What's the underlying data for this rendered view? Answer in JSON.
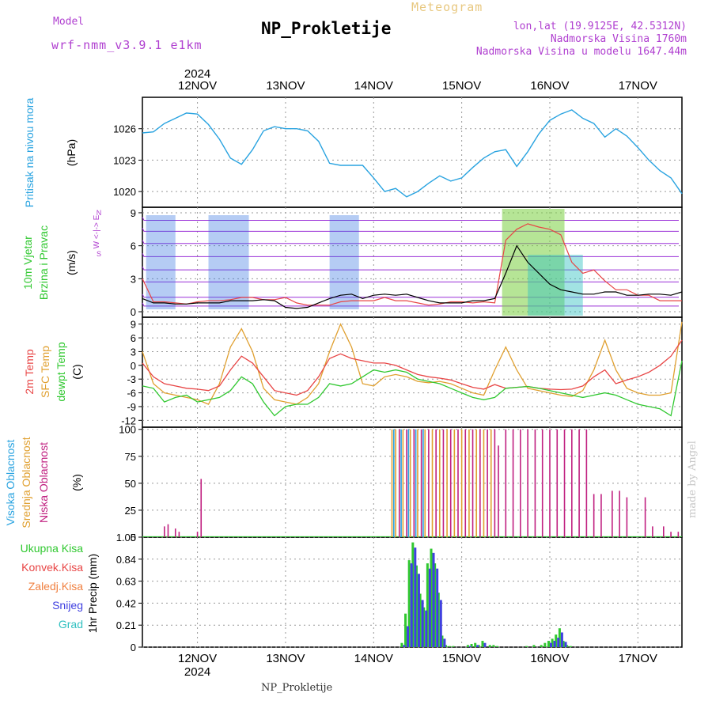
{
  "header": {
    "model_label": "Model",
    "model_name": "wrf-nmm_v3.9.1 e1km",
    "station": "NP_Prokletije",
    "meteogram": "Meteogram",
    "lonlat": "lon,lat (19.9125E, 42.5312N)",
    "elevation": "Nadmorska Visina 1760m",
    "model_elevation": "Nadmorska Visina u modelu 1647.44m",
    "footer_station": "NP_Prokletije",
    "watermark": "made by Angel"
  },
  "colors": {
    "pressure": "#29a3e0",
    "wind_bar_purple": "#9b30d8",
    "wind_bar_blue": "#2a6de0",
    "wind_speed": "#000000",
    "gust": "#e84545",
    "temp2m": "#e84545",
    "sfc_temp": "#e0a030",
    "dewpt": "#30c830",
    "cloud_high": "#29a3e0",
    "cloud_mid": "#e0a030",
    "cloud_low": "#c02080",
    "rain_total": "#30c830",
    "rain_conv": "#e84545",
    "rain_frozen": "#f08040",
    "snow": "#4040e0",
    "hail": "#30c0c0",
    "grid": "#999999",
    "label_purple": "#b040d0"
  },
  "time_axis": {
    "ticks": [
      "12NOV",
      "13NOV",
      "14NOV",
      "15NOV",
      "16NOV",
      "17NOV"
    ],
    "year": "2024",
    "start_hour": -15,
    "end_hour": 132,
    "tick_hours": [
      0,
      24,
      48,
      72,
      96,
      120
    ]
  },
  "chart_data": [
    {
      "id": "pressure",
      "type": "line",
      "ylabel": [
        "Pritisak na nivou mora",
        "(hPa)"
      ],
      "ylim": [
        1018.5,
        1029
      ],
      "yticks": [
        1020,
        1023,
        1026
      ],
      "series": [
        {
          "x": [
            -15,
            -12,
            -9,
            -6,
            -3,
            0,
            3,
            6,
            9,
            12,
            15,
            18,
            21,
            24,
            27,
            30,
            33,
            36,
            39,
            42,
            45,
            48,
            51,
            54,
            57,
            60,
            63,
            66,
            69,
            72,
            75,
            78,
            81,
            84,
            87,
            90,
            93,
            96,
            99,
            102,
            105,
            108,
            111,
            114,
            117,
            120,
            123,
            126,
            129,
            132
          ],
          "y": [
            1025.6,
            1025.7,
            1026.5,
            1027,
            1027.5,
            1027.4,
            1026.4,
            1025,
            1023.2,
            1022.6,
            1024,
            1025.8,
            1026.2,
            1026.0,
            1026.0,
            1025.8,
            1024.8,
            1022.7,
            1022.5,
            1022.5,
            1022.5,
            1021.3,
            1020.0,
            1020.3,
            1019.5,
            1020.0,
            1020.8,
            1021.5,
            1021.0,
            1021.3,
            1022.3,
            1023.2,
            1023.8,
            1024.0,
            1022.4,
            1023.8,
            1025.5,
            1026.8,
            1027.4,
            1027.8,
            1027.0,
            1026.5,
            1025.2,
            1026,
            1025.3,
            1024.2,
            1023.0,
            1022.0,
            1021.3,
            1019.8
          ]
        }
      ]
    },
    {
      "id": "wind",
      "type": "line",
      "ylabel": [
        "10m Vjetar",
        "Brzina i Pravac",
        "(m/s)"
      ],
      "compass": "W <-|-> E",
      "compass_v": [
        "N",
        "S"
      ],
      "ylim": [
        -0.5,
        9.5
      ],
      "yticks": [
        0,
        3,
        6,
        9
      ],
      "series": [
        {
          "name": "speed",
          "x": [
            -15,
            -12,
            -9,
            -6,
            -3,
            0,
            3,
            6,
            9,
            12,
            15,
            18,
            21,
            24,
            27,
            30,
            33,
            36,
            39,
            42,
            45,
            48,
            51,
            54,
            57,
            60,
            63,
            66,
            69,
            72,
            75,
            78,
            81,
            84,
            87,
            90,
            93,
            96,
            99,
            102,
            105,
            108,
            111,
            114,
            117,
            120,
            123,
            126,
            129,
            132
          ],
          "y": [
            1.2,
            0.8,
            0.8,
            0.7,
            0.7,
            0.8,
            0.8,
            0.8,
            1.0,
            1.0,
            1.0,
            1.1,
            1.0,
            0.4,
            0.3,
            0.4,
            0.8,
            1.2,
            1.5,
            1.6,
            1.2,
            1.5,
            1.6,
            1.5,
            1.6,
            1.3,
            1.0,
            0.8,
            0.8,
            0.8,
            1.0,
            1.0,
            1.2,
            3.5,
            6.0,
            4.5,
            3.5,
            2.5,
            2.0,
            1.8,
            1.6,
            1.6,
            1.8,
            1.8,
            1.5,
            1.5,
            1.6,
            1.6,
            1.5,
            1.8
          ]
        },
        {
          "name": "gust",
          "x": [
            -15,
            -12,
            -9,
            -6,
            -3,
            0,
            3,
            6,
            9,
            12,
            15,
            18,
            21,
            24,
            27,
            30,
            33,
            36,
            39,
            42,
            45,
            48,
            51,
            54,
            57,
            60,
            63,
            66,
            69,
            72,
            75,
            78,
            81,
            84,
            87,
            90,
            93,
            96,
            99,
            102,
            105,
            108,
            111,
            114,
            117,
            120,
            123,
            126,
            129,
            132
          ],
          "y": [
            3.0,
            0.9,
            0.9,
            0.8,
            0.7,
            0.9,
            1.0,
            1.0,
            1.1,
            1.3,
            1.3,
            1.1,
            1.1,
            1.3,
            0.8,
            0.6,
            0.6,
            0.6,
            0.9,
            1.0,
            1.0,
            1.0,
            1.3,
            1.0,
            1.0,
            0.8,
            0.6,
            0.7,
            0.9,
            0.9,
            0.8,
            0.9,
            0.8,
            6.5,
            7.5,
            8.0,
            7.7,
            7.5,
            7.0,
            4.5,
            3.5,
            3.8,
            2.8,
            2.0,
            2.0,
            1.5,
            1.5,
            1.0,
            1.0,
            1.0
          ]
        }
      ]
    },
    {
      "id": "temperature",
      "type": "line",
      "ylabel": [
        "2m Temp",
        "SFC Temp",
        "dewpt Temp",
        "(C)"
      ],
      "ylim": [
        -13.5,
        10.5
      ],
      "yticks": [
        -12,
        -9,
        -6,
        -3,
        0,
        3,
        6,
        9
      ],
      "series": [
        {
          "name": "2m Temp",
          "x": [
            -15,
            -12,
            -9,
            -6,
            -3,
            0,
            3,
            6,
            9,
            12,
            15,
            18,
            21,
            24,
            27,
            30,
            33,
            36,
            39,
            42,
            45,
            48,
            51,
            54,
            57,
            60,
            63,
            66,
            69,
            72,
            75,
            78,
            81,
            84,
            87,
            90,
            93,
            96,
            99,
            102,
            105,
            108,
            111,
            114,
            117,
            120,
            123,
            126,
            129,
            132
          ],
          "y": [
            0.5,
            -2.5,
            -4.0,
            -4.5,
            -5.0,
            -5.2,
            -5.5,
            -4.5,
            -1.0,
            2.0,
            0.5,
            -2.5,
            -5.5,
            -6.0,
            -6.5,
            -5.5,
            -2.5,
            1.5,
            2.5,
            1.5,
            1.0,
            0.5,
            0.5,
            0.0,
            -1.0,
            -2.0,
            -2.5,
            -2.8,
            -3.2,
            -4.0,
            -4.8,
            -5.2,
            -4.2,
            -5.0,
            -4.8,
            -4.6,
            -5.0,
            -5.2,
            -5.3,
            -5.2,
            -4.5,
            -2.5,
            -1.0,
            -4.0,
            -3.2,
            -2.5,
            -1.5,
            0.0,
            2.0,
            5.5
          ]
        },
        {
          "name": "SFC Temp",
          "x": [
            -15,
            -12,
            -9,
            -6,
            -3,
            0,
            3,
            6,
            9,
            12,
            15,
            18,
            21,
            24,
            27,
            30,
            33,
            36,
            39,
            42,
            45,
            48,
            51,
            54,
            57,
            60,
            63,
            66,
            69,
            72,
            75,
            78,
            81,
            84,
            87,
            90,
            93,
            96,
            99,
            102,
            105,
            108,
            111,
            114,
            117,
            120,
            123,
            126,
            129,
            132
          ],
          "y": [
            3.0,
            -4.0,
            -6.0,
            -6.5,
            -7.0,
            -7.5,
            -8.5,
            -4.0,
            4.0,
            8.0,
            3.0,
            -5.0,
            -7.5,
            -8.0,
            -8.5,
            -7.0,
            -4.0,
            3.0,
            9.0,
            4.0,
            -4.0,
            -4.5,
            -2.5,
            -2.0,
            -2.5,
            -3.5,
            -3.8,
            -3.5,
            -4.0,
            -5.0,
            -6.0,
            -6.5,
            -1.0,
            4.0,
            -1.0,
            -5.0,
            -5.5,
            -6.0,
            -6.5,
            -6.8,
            -5.5,
            -1.0,
            5.5,
            -1.0,
            -5.0,
            -6.0,
            -6.5,
            -6.5,
            -6.0,
            9.5
          ]
        },
        {
          "name": "dewpt Temp",
          "x": [
            -15,
            -12,
            -9,
            -6,
            -3,
            0,
            3,
            6,
            9,
            12,
            15,
            18,
            21,
            24,
            27,
            30,
            33,
            36,
            39,
            42,
            45,
            48,
            51,
            54,
            57,
            60,
            63,
            66,
            69,
            72,
            75,
            78,
            81,
            84,
            87,
            90,
            93,
            96,
            99,
            102,
            105,
            108,
            111,
            114,
            117,
            120,
            123,
            126,
            129,
            132
          ],
          "y": [
            -4.5,
            -5.0,
            -8.0,
            -7.0,
            -6.5,
            -8.0,
            -7.5,
            -7.0,
            -5.5,
            -2.5,
            -4.0,
            -8.0,
            -11.0,
            -9.0,
            -8.5,
            -8.5,
            -7.0,
            -4.0,
            -4.5,
            -4.0,
            -2.5,
            -1.0,
            -1.5,
            -1.0,
            -1.5,
            -3.0,
            -3.5,
            -4.0,
            -5.0,
            -6.0,
            -7.0,
            -7.5,
            -7.0,
            -5.0,
            -4.8,
            -4.6,
            -5.0,
            -5.5,
            -6.0,
            -6.5,
            -7.0,
            -6.5,
            -6.0,
            -6.5,
            -7.5,
            -8.5,
            -9.0,
            -9.5,
            -11.0,
            1.0
          ]
        }
      ]
    },
    {
      "id": "cloud",
      "type": "bar",
      "ylabel": [
        "Visoka Oblacnost",
        "Srednja Oblacnost",
        "Niska Oblacnost",
        "(%)"
      ],
      "ylim": [
        0,
        102
      ],
      "yticks": [
        0,
        25,
        50,
        75,
        100
      ],
      "series": [
        {
          "name": "Niska Oblacnost",
          "x": [
            -9,
            -8,
            -6,
            -5,
            0,
            1,
            55,
            57,
            59,
            61,
            63,
            65,
            67,
            69,
            71,
            73,
            75,
            77,
            79,
            81,
            82,
            84,
            86,
            88,
            90,
            92,
            94,
            96,
            98,
            100,
            102,
            104,
            106,
            108,
            110,
            113,
            115,
            117,
            122,
            124,
            127,
            129,
            131
          ],
          "y": [
            10,
            12,
            8,
            5,
            5,
            54,
            100,
            100,
            100,
            100,
            100,
            100,
            100,
            100,
            100,
            100,
            100,
            100,
            100,
            100,
            85,
            100,
            100,
            100,
            100,
            100,
            100,
            100,
            100,
            100,
            100,
            100,
            100,
            40,
            40,
            43,
            43,
            37,
            37,
            10,
            10,
            5,
            5
          ]
        },
        {
          "name": "Srednja Oblacnost",
          "x": [
            53,
            54,
            56,
            58,
            60,
            62,
            64,
            66,
            68,
            70,
            72,
            74,
            76,
            78,
            80
          ],
          "y": [
            100,
            100,
            100,
            100,
            100,
            100,
            100,
            100,
            100,
            100,
            100,
            100,
            100,
            100,
            100
          ]
        },
        {
          "name": "Visoka Oblacnost",
          "x": [
            53.5,
            55.5,
            57.5,
            59.5,
            61.5
          ],
          "y": [
            100,
            100,
            100,
            100,
            100
          ]
        }
      ]
    },
    {
      "id": "precip",
      "type": "bar",
      "ylabel": [
        "1hr Precip (mm)"
      ],
      "legend": [
        "Ukupna Kisa",
        "Konvek.Kisa",
        "Zaledj.Kisa",
        "Snijeg",
        "Grad"
      ],
      "ylim": [
        0,
        1.05
      ],
      "yticks": [
        0,
        0.21,
        0.42,
        0.63,
        0.84,
        1.05
      ],
      "ytick_labels": [
        "0",
        "0.21",
        "0.42",
        "0.63",
        "0.84",
        "1.05"
      ],
      "series": [
        {
          "name": "Ukupna Kisa",
          "x": [
            56,
            57,
            58,
            59,
            60,
            61,
            62,
            63,
            64,
            65,
            66,
            67,
            68,
            69,
            70,
            74,
            75,
            76,
            77,
            78,
            80,
            81,
            82,
            90,
            92,
            94,
            95,
            96,
            97,
            98,
            99,
            100,
            101,
            102
          ],
          "y": [
            0.04,
            0.32,
            0.83,
            1.0,
            0.78,
            0.51,
            0.38,
            0.8,
            0.94,
            0.8,
            0.52,
            0.11,
            0.02,
            0.01,
            0.01,
            0.02,
            0.03,
            0.04,
            0.02,
            0.06,
            0.02,
            0.02,
            0.01,
            0.01,
            0.02,
            0.02,
            0.04,
            0.06,
            0.08,
            0.12,
            0.18,
            0.06,
            0.02,
            0.01
          ]
        },
        {
          "name": "Snijeg",
          "x": [
            56,
            57,
            58,
            59,
            60,
            61,
            62,
            63,
            64,
            65,
            66,
            67,
            74,
            76,
            78,
            96,
            97,
            98,
            99,
            100
          ],
          "y": [
            0.02,
            0.2,
            0.8,
            0.95,
            0.7,
            0.45,
            0.35,
            0.75,
            0.9,
            0.75,
            0.45,
            0.08,
            0.01,
            0.02,
            0.04,
            0.04,
            0.06,
            0.09,
            0.14,
            0.05
          ]
        }
      ]
    }
  ]
}
